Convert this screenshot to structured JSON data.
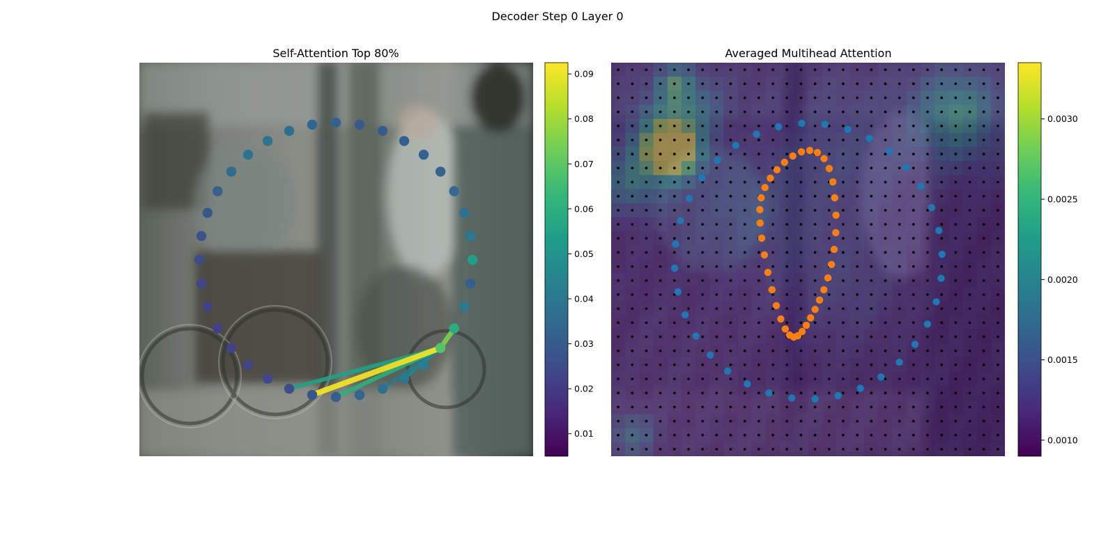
{
  "figure": {
    "title": "Decoder Step 0 Layer 0"
  },
  "chart_data": [
    {
      "type": "scatter",
      "title": "Self-Attention Top 80%",
      "background": "blurred street photo with bicycles, a pole and a pedestrian",
      "axes": "off",
      "colormap": "viridis",
      "colorbar": {
        "min": 0.005,
        "max": 0.0925,
        "ticks": [
          0.01,
          0.02,
          0.03,
          0.04,
          0.05,
          0.06,
          0.07,
          0.08,
          0.09
        ],
        "tick_labels": [
          "0.01",
          "0.02",
          "0.03",
          "0.04",
          "0.05",
          "0.06",
          "0.07",
          "0.08",
          "0.09"
        ]
      },
      "points": {
        "count": 36,
        "layout": "ellipse contour",
        "values": [
          0.054,
          0.04,
          0.037,
          0.035,
          0.033,
          0.032,
          0.031,
          0.03,
          0.03,
          0.032,
          0.034,
          0.036,
          0.038,
          0.038,
          0.036,
          0.032,
          0.029,
          0.027,
          0.025,
          0.023,
          0.022,
          0.022,
          0.022,
          0.023,
          0.024,
          0.026,
          0.028,
          0.031,
          0.034,
          0.037,
          0.04,
          0.042,
          0.069,
          0.059,
          0.04,
          0.031
        ]
      },
      "edges": [
        {
          "from": 32,
          "to": 26,
          "value": 0.092
        },
        {
          "from": 32,
          "to": 33,
          "value": 0.075
        },
        {
          "from": 32,
          "to": 27,
          "value": 0.06
        },
        {
          "from": 32,
          "to": 25,
          "value": 0.055
        },
        {
          "from": 32,
          "to": 30,
          "value": 0.045
        },
        {
          "from": 32,
          "to": 29,
          "value": 0.04
        }
      ]
    },
    {
      "type": "heatmap",
      "title": "Averaged Multihead Attention",
      "background": "same street photo overlaid with a coarse attention heatmap",
      "axes": "off",
      "colormap": "viridis",
      "colorbar": {
        "min": 0.0009,
        "max": 0.00335,
        "ticks": [
          0.001,
          0.0015,
          0.002,
          0.0025,
          0.003
        ],
        "tick_labels": [
          "0.0010",
          "0.0015",
          "0.0020",
          "0.0025",
          "0.0030"
        ]
      },
      "grid": {
        "rows": 28,
        "cols": 28,
        "sample_points": "black dots at every cell center"
      },
      "series": [
        {
          "color": "#1f77b4",
          "layout": "large ellipse contour",
          "count": 36
        },
        {
          "color": "#ff7f0e",
          "layout": "small elongated contour",
          "count": 36
        }
      ]
    }
  ],
  "colors": {
    "viridis": [
      "#440154",
      "#482878",
      "#3e4a89",
      "#31688e",
      "#26828e",
      "#1f9e89",
      "#35b779",
      "#6ece58",
      "#b5de2b",
      "#fde725"
    ],
    "blue_points": "#1f77b4",
    "orange_points": "#ff7f0e",
    "grid_dots": "#000000"
  }
}
